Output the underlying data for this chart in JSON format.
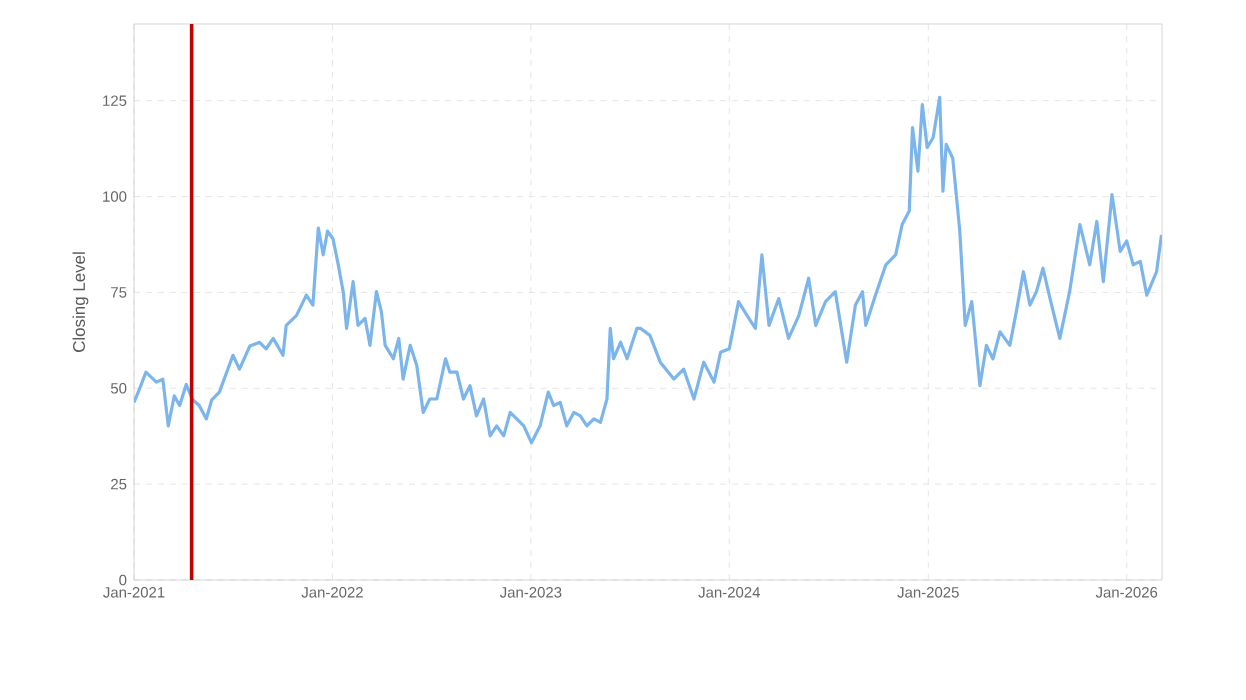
{
  "chart_data": {
    "type": "line",
    "ylabel": "Closing Level",
    "xlim": [
      "2021-01-01",
      "2026-03-07"
    ],
    "ylim": [
      0,
      145
    ],
    "xticks": [
      {
        "value": "2021-01-01",
        "label": "Jan-2021"
      },
      {
        "value": "2022-01-01",
        "label": "Jan-2022"
      },
      {
        "value": "2023-01-01",
        "label": "Jan-2023"
      },
      {
        "value": "2024-01-01",
        "label": "Jan-2024"
      },
      {
        "value": "2025-01-01",
        "label": "Jan-2025"
      },
      {
        "value": "2026-01-01",
        "label": "Jan-2026"
      }
    ],
    "yticks": [
      0,
      25,
      50,
      75,
      100,
      125
    ],
    "grid": true,
    "line_style": "solid",
    "ref_lines": [
      {
        "axis": "x",
        "value": "2021-04-17",
        "color": "#c00000"
      }
    ],
    "series": [
      {
        "color": "#7cb5ec",
        "x": [
          "2021-01-01",
          "2021-01-11",
          "2021-01-23",
          "2021-02-11",
          "2021-02-23",
          "2021-03-05",
          "2021-03-16",
          "2021-03-26",
          "2021-04-07",
          "2021-04-19",
          "2021-05-01",
          "2021-05-14",
          "2021-05-24",
          "2021-06-07",
          "2021-06-20",
          "2021-07-02",
          "2021-07-14",
          "2021-08-02",
          "2021-08-20",
          "2021-09-01",
          "2021-09-14",
          "2021-10-02",
          "2021-10-08",
          "2021-10-27",
          "2021-11-14",
          "2021-11-26",
          "2021-12-06",
          "2021-12-15",
          "2021-12-23",
          "2022-01-02",
          "2022-01-12",
          "2022-01-21",
          "2022-01-27",
          "2022-02-08",
          "2022-02-17",
          "2022-03-02",
          "2022-03-11",
          "2022-03-23",
          "2022-04-01",
          "2022-04-08",
          "2022-04-23",
          "2022-05-03",
          "2022-05-11",
          "2022-05-24",
          "2022-06-05",
          "2022-06-17",
          "2022-06-29",
          "2022-07-12",
          "2022-07-28",
          "2022-08-05",
          "2022-08-18",
          "2022-08-30",
          "2022-09-11",
          "2022-09-23",
          "2022-10-06",
          "2022-10-18",
          "2022-10-30",
          "2022-11-12",
          "2022-11-24",
          "2022-12-06",
          "2022-12-19",
          "2023-01-02",
          "2023-01-18",
          "2023-02-02",
          "2023-02-12",
          "2023-02-24",
          "2023-03-08",
          "2023-03-21",
          "2023-04-02",
          "2023-04-14",
          "2023-04-27",
          "2023-05-09",
          "2023-05-21",
          "2023-05-27",
          "2023-06-02",
          "2023-06-15",
          "2023-06-27",
          "2023-07-15",
          "2023-07-22",
          "2023-08-08",
          "2023-08-27",
          "2023-09-21",
          "2023-10-09",
          "2023-10-28",
          "2023-11-15",
          "2023-12-04",
          "2023-12-16",
          "2024-01-01",
          "2024-01-18",
          "2024-02-06",
          "2024-02-18",
          "2024-03-01",
          "2024-03-14",
          "2024-04-01",
          "2024-04-19",
          "2024-05-08",
          "2024-05-26",
          "2024-06-08",
          "2024-06-26",
          "2024-07-14",
          "2024-08-04",
          "2024-08-20",
          "2024-09-02",
          "2024-09-08",
          "2024-09-26",
          "2024-10-15",
          "2024-11-02",
          "2024-11-14",
          "2024-11-27",
          "2024-12-03",
          "2024-12-13",
          "2024-12-21",
          "2024-12-30",
          "2025-01-10",
          "2025-01-22",
          "2025-01-28",
          "2025-02-03",
          "2025-02-15",
          "2025-02-28",
          "2025-03-10",
          "2025-03-22",
          "2025-04-06",
          "2025-04-18",
          "2025-04-30",
          "2025-05-13",
          "2025-05-31",
          "2025-06-12",
          "2025-06-25",
          "2025-07-07",
          "2025-07-19",
          "2025-07-31",
          "2025-08-13",
          "2025-08-31",
          "2025-09-18",
          "2025-10-07",
          "2025-10-25",
          "2025-11-07",
          "2025-11-19",
          "2025-12-05",
          "2025-12-20",
          "2026-01-01",
          "2026-01-13",
          "2026-01-26",
          "2026-02-07",
          "2026-02-25",
          "2026-03-06"
        ],
        "values": [
          46.3,
          49.8,
          54.2,
          51.6,
          52.4,
          40.2,
          48,
          45.5,
          51,
          47,
          45.5,
          42,
          47,
          49,
          54,
          58.6,
          55,
          61,
          62,
          60.3,
          63,
          58.6,
          66.4,
          69,
          74.3,
          71.7,
          91.8,
          84.8,
          91,
          89,
          82,
          75,
          65.6,
          77.8,
          66.4,
          68.2,
          61.2,
          75.2,
          70,
          61.2,
          57.7,
          63,
          52.4,
          61.2,
          56,
          43.7,
          47.2,
          47.2,
          57.7,
          54.2,
          54.2,
          47.2,
          50.7,
          42.8,
          47.2,
          37.6,
          40.2,
          37.6,
          43.7,
          42,
          40.2,
          35.8,
          40.2,
          49,
          45.5,
          46.3,
          40.2,
          43.7,
          42.8,
          40.2,
          42,
          41.1,
          47.2,
          65.6,
          57.7,
          62,
          57.7,
          65.6,
          65.6,
          63.8,
          56.8,
          52.4,
          55,
          47.2,
          56.8,
          51.6,
          59.4,
          60.3,
          72.6,
          68.2,
          65.6,
          84.8,
          66.4,
          73.4,
          63,
          69,
          78.7,
          66.4,
          72.6,
          75.2,
          56.8,
          71.7,
          75.2,
          66.4,
          74.3,
          82.2,
          84.8,
          92.7,
          96.2,
          118,
          106.6,
          124,
          112.8,
          115.4,
          125.9,
          101.4,
          113.6,
          110,
          91,
          66.4,
          72.6,
          50.7,
          61.2,
          57.7,
          64.7,
          61.2,
          70,
          80.4,
          71.7,
          75.2,
          81.3,
          73.4,
          63,
          75.2,
          92.7,
          82.2,
          93.5,
          77.8,
          100.5,
          85.7,
          88.4,
          82.2,
          83.1,
          74.3,
          80.4,
          90
        ]
      }
    ]
  }
}
